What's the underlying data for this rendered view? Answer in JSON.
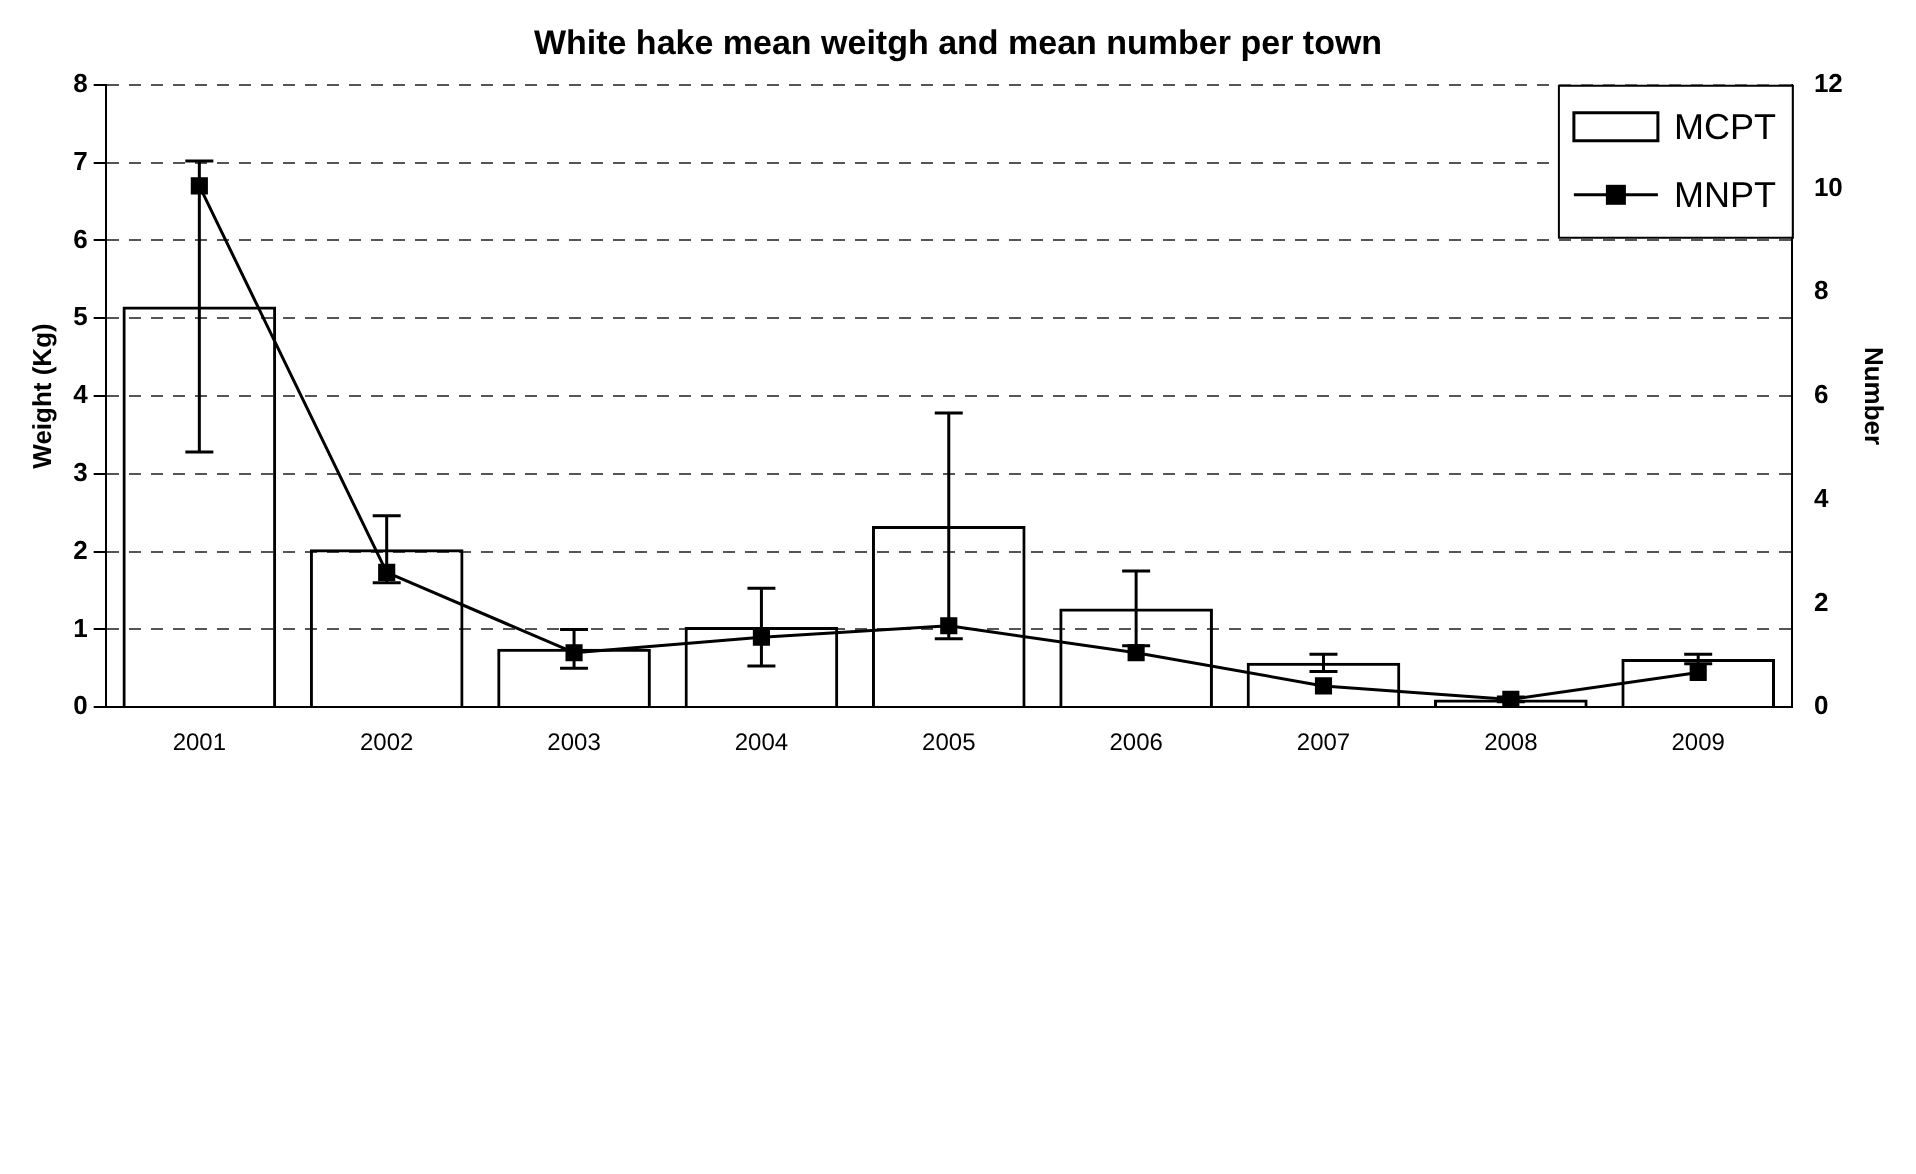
{
  "chart_data": {
    "type": "bar",
    "title": "White hake mean weitgh and mean number per town",
    "ylabel": "Weight (Kg)",
    "y2label": "Number",
    "categories": [
      "2001",
      "2002",
      "2003",
      "2004",
      "2005",
      "2006",
      "2007",
      "2008",
      "2009"
    ],
    "series": [
      {
        "name": "MCPT",
        "color": "#000000",
        "values": [
          5.15,
          2.03,
          0.75,
          1.03,
          2.33,
          1.27,
          0.57,
          0.1,
          0.62
        ],
        "errors": [
          1.87,
          0.43,
          0.25,
          0.5,
          1.45,
          0.48,
          0.11,
          0.03,
          0.06
        ]
      },
      {
        "name": "MNPT",
        "type": "line",
        "axis": "y2",
        "color": "#000000",
        "marker": "square",
        "values": [
          10.05,
          2.6,
          1.05,
          1.35,
          1.57,
          1.05,
          0.41,
          0.15,
          0.67
        ]
      }
    ],
    "ylim": [
      0,
      8
    ],
    "yticks": [
      0,
      1,
      2,
      3,
      4,
      5,
      6,
      7,
      8
    ],
    "y2lim": [
      0,
      12
    ],
    "y2ticks": [
      0,
      2,
      4,
      6,
      8,
      10,
      12
    ],
    "grid": "y",
    "legend": "top right",
    "line_style": "solid"
  }
}
